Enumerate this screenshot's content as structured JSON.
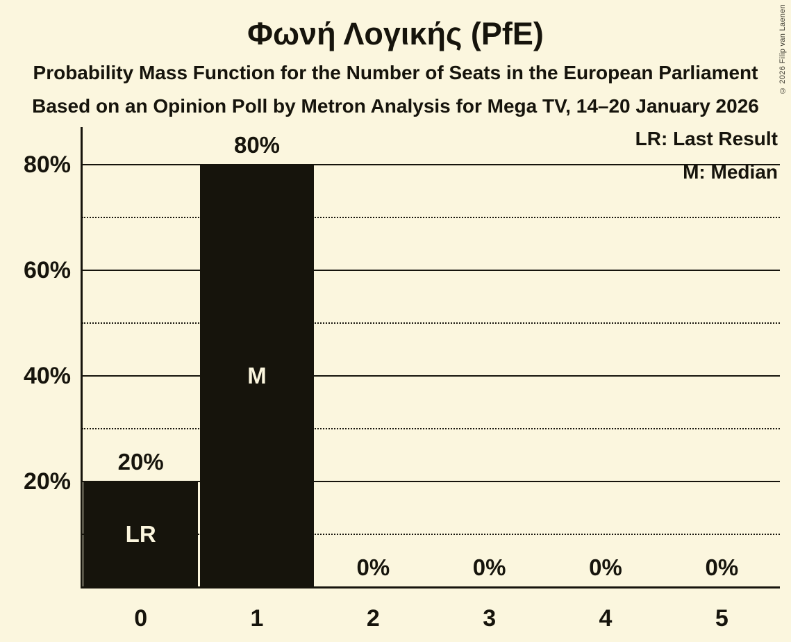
{
  "header": {
    "title": "Φωνή Λογικής (PfE)",
    "subtitle1": "Probability Mass Function for the Number of Seats in the European Parliament",
    "subtitle2": "Based on an Opinion Poll by Metron Analysis for Mega TV, 14–20 January 2026"
  },
  "copyright": "© 2026 Filip van Laenen",
  "legend": {
    "lr": "LR: Last Result",
    "m": "M: Median"
  },
  "colors": {
    "background": "#FBF6DE",
    "bar": "#16140C",
    "text": "#16140C",
    "bar_label_text": "#FBF6DE"
  },
  "chart_data": {
    "type": "bar",
    "title": "Φωνή Λογικής (PfE)",
    "categories": [
      "0",
      "1",
      "2",
      "3",
      "4",
      "5"
    ],
    "values": [
      20,
      80,
      0,
      0,
      0,
      0
    ],
    "value_labels": [
      "20%",
      "80%",
      "0%",
      "0%",
      "0%",
      "0%"
    ],
    "annotations": [
      "LR",
      "M",
      "",
      "",
      "",
      ""
    ],
    "xlabel": "",
    "ylabel": "",
    "ylim": [
      0,
      87
    ],
    "yticks": [
      20,
      40,
      60,
      80
    ],
    "ytick_labels": [
      "20%",
      "40%",
      "60%",
      "80%"
    ],
    "minor_gridlines": [
      10,
      30,
      50,
      70
    ],
    "grid": "horizontal",
    "legend_position": "top-right"
  }
}
